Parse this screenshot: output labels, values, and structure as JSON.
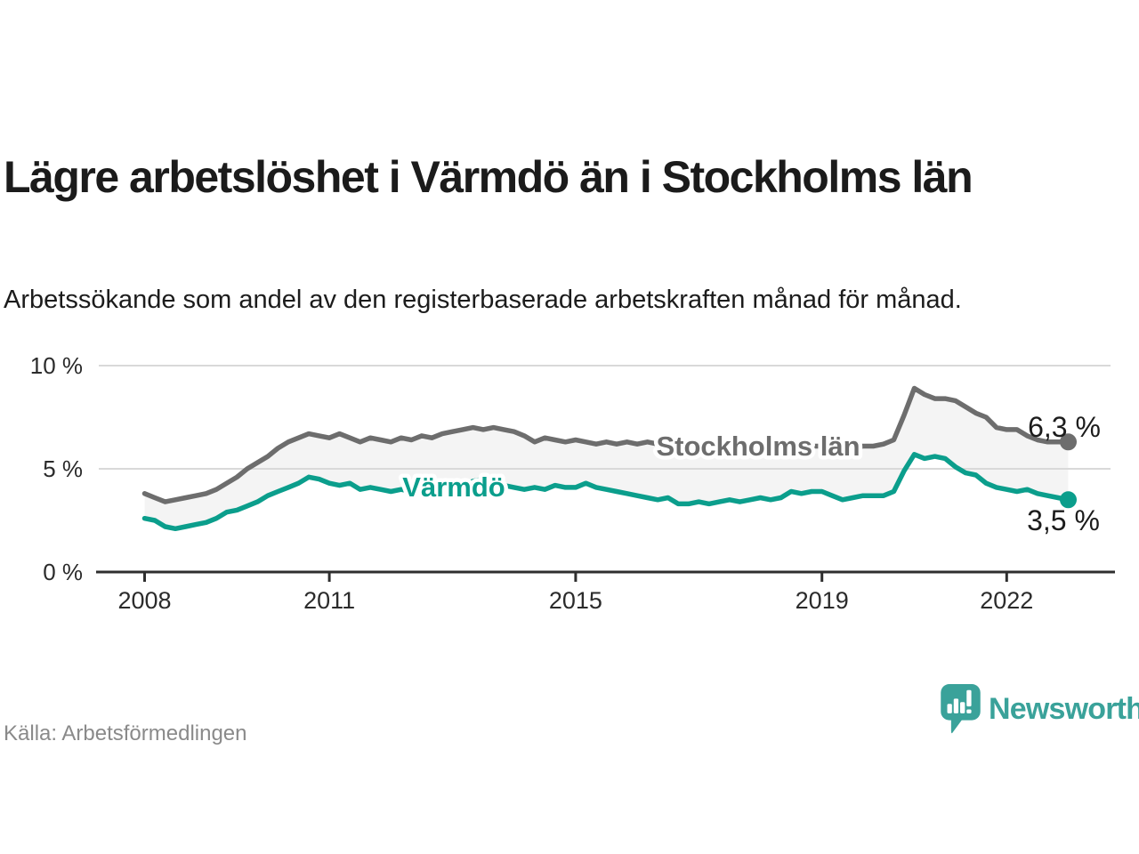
{
  "header": {
    "title": "Lägre arbetslöshet i Värmdö än i Stockholms län",
    "subtitle": "Arbetssökande som andel av den registerbaserade arbetskraften månad för månad."
  },
  "footer": {
    "source": "Källa: Arbetsförmedlingen",
    "brand": "Newsworthy"
  },
  "colors": {
    "teal_line": "#0b9e8c",
    "gray_line": "#6d6d6d",
    "brand_teal": "#3aa29a",
    "fill_between": "#f4f4f4",
    "gridline": "#d9d9d9",
    "axis": "#2e2e2e",
    "tick_text": "#2b2b2b",
    "value_text": "#1c1c1c"
  },
  "chart_data": {
    "type": "line",
    "title": "Lägre arbetslöshet i Värmdö än i Stockholms län",
    "xlabel": "",
    "ylabel": "",
    "unit": "%",
    "ylim": [
      0,
      10
    ],
    "grid": "horizontal",
    "legend_position": "inline-on-lines",
    "x_start_year": 2008,
    "x_step_months": 2,
    "x_end": "2023",
    "x_ticks": [
      {
        "year": 2008,
        "label": "2008"
      },
      {
        "year": 2011,
        "label": "2011"
      },
      {
        "year": 2015,
        "label": "2015"
      },
      {
        "year": 2019,
        "label": "2019"
      },
      {
        "year": 2022,
        "label": "2022"
      }
    ],
    "y_ticks": [
      {
        "value": 0,
        "label": "0 %"
      },
      {
        "value": 5,
        "label": "5 %"
      },
      {
        "value": 10,
        "label": "10 %"
      }
    ],
    "area_fill_between_series": true,
    "series": [
      {
        "name": "Stockholms län",
        "color": "#6d6d6d",
        "end_label": "6,3 %",
        "end_value": 6.3,
        "values": [
          3.8,
          3.6,
          3.4,
          3.5,
          3.6,
          3.7,
          3.8,
          4.0,
          4.3,
          4.6,
          5.0,
          5.3,
          5.6,
          6.0,
          6.3,
          6.5,
          6.7,
          6.6,
          6.5,
          6.7,
          6.5,
          6.3,
          6.5,
          6.4,
          6.3,
          6.5,
          6.4,
          6.6,
          6.5,
          6.7,
          6.8,
          6.9,
          7.0,
          6.9,
          7.0,
          6.9,
          6.8,
          6.6,
          6.3,
          6.5,
          6.4,
          6.3,
          6.4,
          6.3,
          6.2,
          6.3,
          6.2,
          6.3,
          6.2,
          6.3,
          6.2,
          6.1,
          6.2,
          6.1,
          6.1,
          6.2,
          6.1,
          6.2,
          6.1,
          6.2,
          6.1,
          6.0,
          6.1,
          6.0,
          6.1,
          6.1,
          6.1,
          6.2,
          6.1,
          6.0,
          6.1,
          6.1,
          6.2,
          6.4,
          7.6,
          8.9,
          8.6,
          8.4,
          8.4,
          8.3,
          8.0,
          7.7,
          7.5,
          7.0,
          6.9,
          6.9,
          6.6,
          6.4,
          6.3,
          6.3,
          6.3
        ]
      },
      {
        "name": "Värmdö",
        "color": "#0b9e8c",
        "end_label": "3,5 %",
        "end_value": 3.5,
        "values": [
          2.6,
          2.5,
          2.2,
          2.1,
          2.2,
          2.3,
          2.4,
          2.6,
          2.9,
          3.0,
          3.2,
          3.4,
          3.7,
          3.9,
          4.1,
          4.3,
          4.6,
          4.5,
          4.3,
          4.2,
          4.3,
          4.0,
          4.1,
          4.0,
          3.9,
          4.0,
          3.9,
          3.8,
          3.9,
          4.0,
          4.1,
          4.2,
          4.4,
          4.5,
          4.3,
          4.2,
          4.1,
          4.0,
          4.1,
          4.0,
          4.2,
          4.1,
          4.1,
          4.3,
          4.1,
          4.0,
          3.9,
          3.8,
          3.7,
          3.6,
          3.5,
          3.6,
          3.3,
          3.3,
          3.4,
          3.3,
          3.4,
          3.5,
          3.4,
          3.5,
          3.6,
          3.5,
          3.6,
          3.9,
          3.8,
          3.9,
          3.9,
          3.7,
          3.5,
          3.6,
          3.7,
          3.7,
          3.7,
          3.9,
          4.9,
          5.7,
          5.5,
          5.6,
          5.5,
          5.1,
          4.8,
          4.7,
          4.3,
          4.1,
          4.0,
          3.9,
          4.0,
          3.8,
          3.7,
          3.6,
          3.5
        ]
      }
    ]
  }
}
